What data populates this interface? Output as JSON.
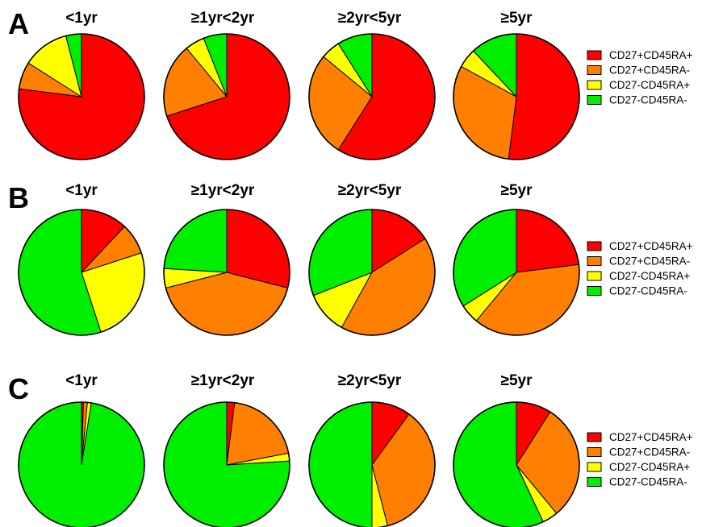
{
  "categories": [
    "CD27+CD45RA+",
    "CD27+CD45RA-",
    "CD27-CD45RA+",
    "CD27-CD45RA-"
  ],
  "colors": {
    "CD27+CD45RA+": "#ff0000",
    "CD27+CD45RA-": "#ff8000",
    "CD27-CD45RA+": "#ffff00",
    "CD27-CD45RA-": "#00ee00"
  },
  "chart_data": [
    {
      "type": "pie",
      "panel": "A",
      "pies": [
        {
          "title": "<1yr",
          "values": [
            77,
            7,
            12,
            4
          ]
        },
        {
          "title": "≥1yr<2yr",
          "values": [
            70,
            19,
            5,
            6
          ]
        },
        {
          "title": "≥2yr<5yr",
          "values": [
            59,
            27,
            5,
            9
          ]
        },
        {
          "title": "≥5yr",
          "values": [
            52,
            31,
            5,
            12
          ]
        }
      ],
      "legend": [
        "CD27+CD45RA+",
        "CD27+CD45RA-",
        "CD27-CD45RA+",
        "CD27-CD45RA-"
      ],
      "legend_position": "right"
    },
    {
      "type": "pie",
      "panel": "B",
      "pies": [
        {
          "title": "<1yr",
          "values": [
            12,
            8,
            25,
            55
          ]
        },
        {
          "title": "≥1yr<2yr",
          "values": [
            29,
            42,
            5,
            24
          ]
        },
        {
          "title": "≥2yr<5yr",
          "values": [
            16,
            42,
            11,
            31
          ]
        },
        {
          "title": "≥5yr",
          "values": [
            23,
            38,
            5,
            34
          ]
        }
      ],
      "legend": [
        "CD27+CD45RA+",
        "CD27+CD45RA-",
        "CD27-CD45RA+",
        "CD27-CD45RA-"
      ],
      "legend_position": "right"
    },
    {
      "type": "pie",
      "panel": "C",
      "pies": [
        {
          "title": "<1yr",
          "values": [
            0.5,
            1,
            1,
            97.5
          ]
        },
        {
          "title": "≥1yr<2yr",
          "values": [
            2,
            20,
            2,
            76
          ]
        },
        {
          "title": "≥2yr<5yr",
          "values": [
            10,
            36,
            4,
            50
          ]
        },
        {
          "title": "≥5yr",
          "values": [
            9,
            30,
            4,
            57
          ]
        }
      ],
      "legend": [
        "CD27+CD45RA+",
        "CD27+CD45RA-",
        "CD27-CD45RA+",
        "CD27-CD45RA-"
      ],
      "legend_position": "right"
    }
  ]
}
